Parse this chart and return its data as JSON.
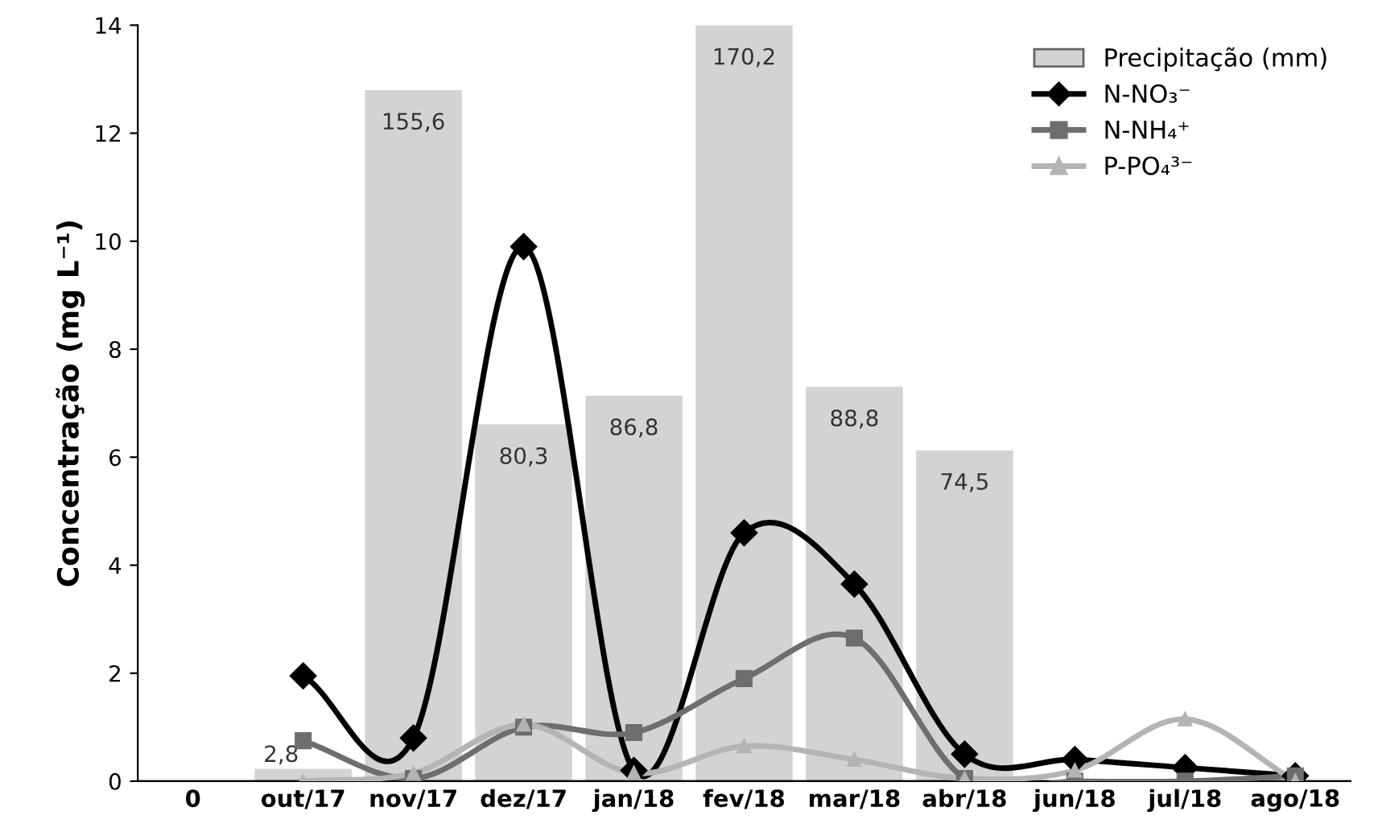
{
  "chart_data": {
    "type": "line",
    "ylabel": "Concentração (mg L⁻¹)",
    "categories": [
      "0",
      "out/17",
      "nov/17",
      "dez/17",
      "jan/18",
      "fev/18",
      "mar/18",
      "abr/18",
      "jun/18",
      "jul/18",
      "ago/18"
    ],
    "ylim": [
      0,
      14
    ],
    "yticks": [
      0,
      2,
      4,
      6,
      8,
      10,
      12,
      14
    ],
    "y2lim": [
      0,
      170.2
    ],
    "tick_labels": "xy",
    "grid": false,
    "legend": "top right",
    "series": [
      {
        "name": "Precipitação (mm)",
        "type": "bar",
        "axis": "y2",
        "color": "#d3d3d3",
        "values": [
          null,
          2.8,
          155.6,
          80.3,
          86.8,
          170.2,
          88.8,
          74.5,
          null,
          null,
          null
        ],
        "value_labels": [
          null,
          "2,8",
          "155,6",
          "80,3",
          "86,8",
          "170,2",
          "88,8",
          "74,5",
          null,
          null,
          null
        ]
      },
      {
        "name": "N-NO₃⁻",
        "color": "#000000",
        "marker": "diamond",
        "values": [
          null,
          1.95,
          0.8,
          9.9,
          0.2,
          4.6,
          3.65,
          0.5,
          0.4,
          0.25,
          0.1
        ]
      },
      {
        "name": "N-NH₄⁺",
        "color": "#6e6e6e",
        "marker": "square",
        "values": [
          null,
          0.75,
          0.05,
          1.0,
          0.9,
          1.9,
          2.65,
          0.05,
          0.0,
          0.0,
          0.1
        ]
      },
      {
        "name": "P-PO₄³⁻",
        "color": "#b4b4b4",
        "marker": "triangle",
        "values": [
          null,
          0.0,
          0.15,
          1.05,
          0.15,
          0.65,
          0.4,
          0.05,
          0.2,
          1.15,
          0.0
        ]
      }
    ]
  }
}
